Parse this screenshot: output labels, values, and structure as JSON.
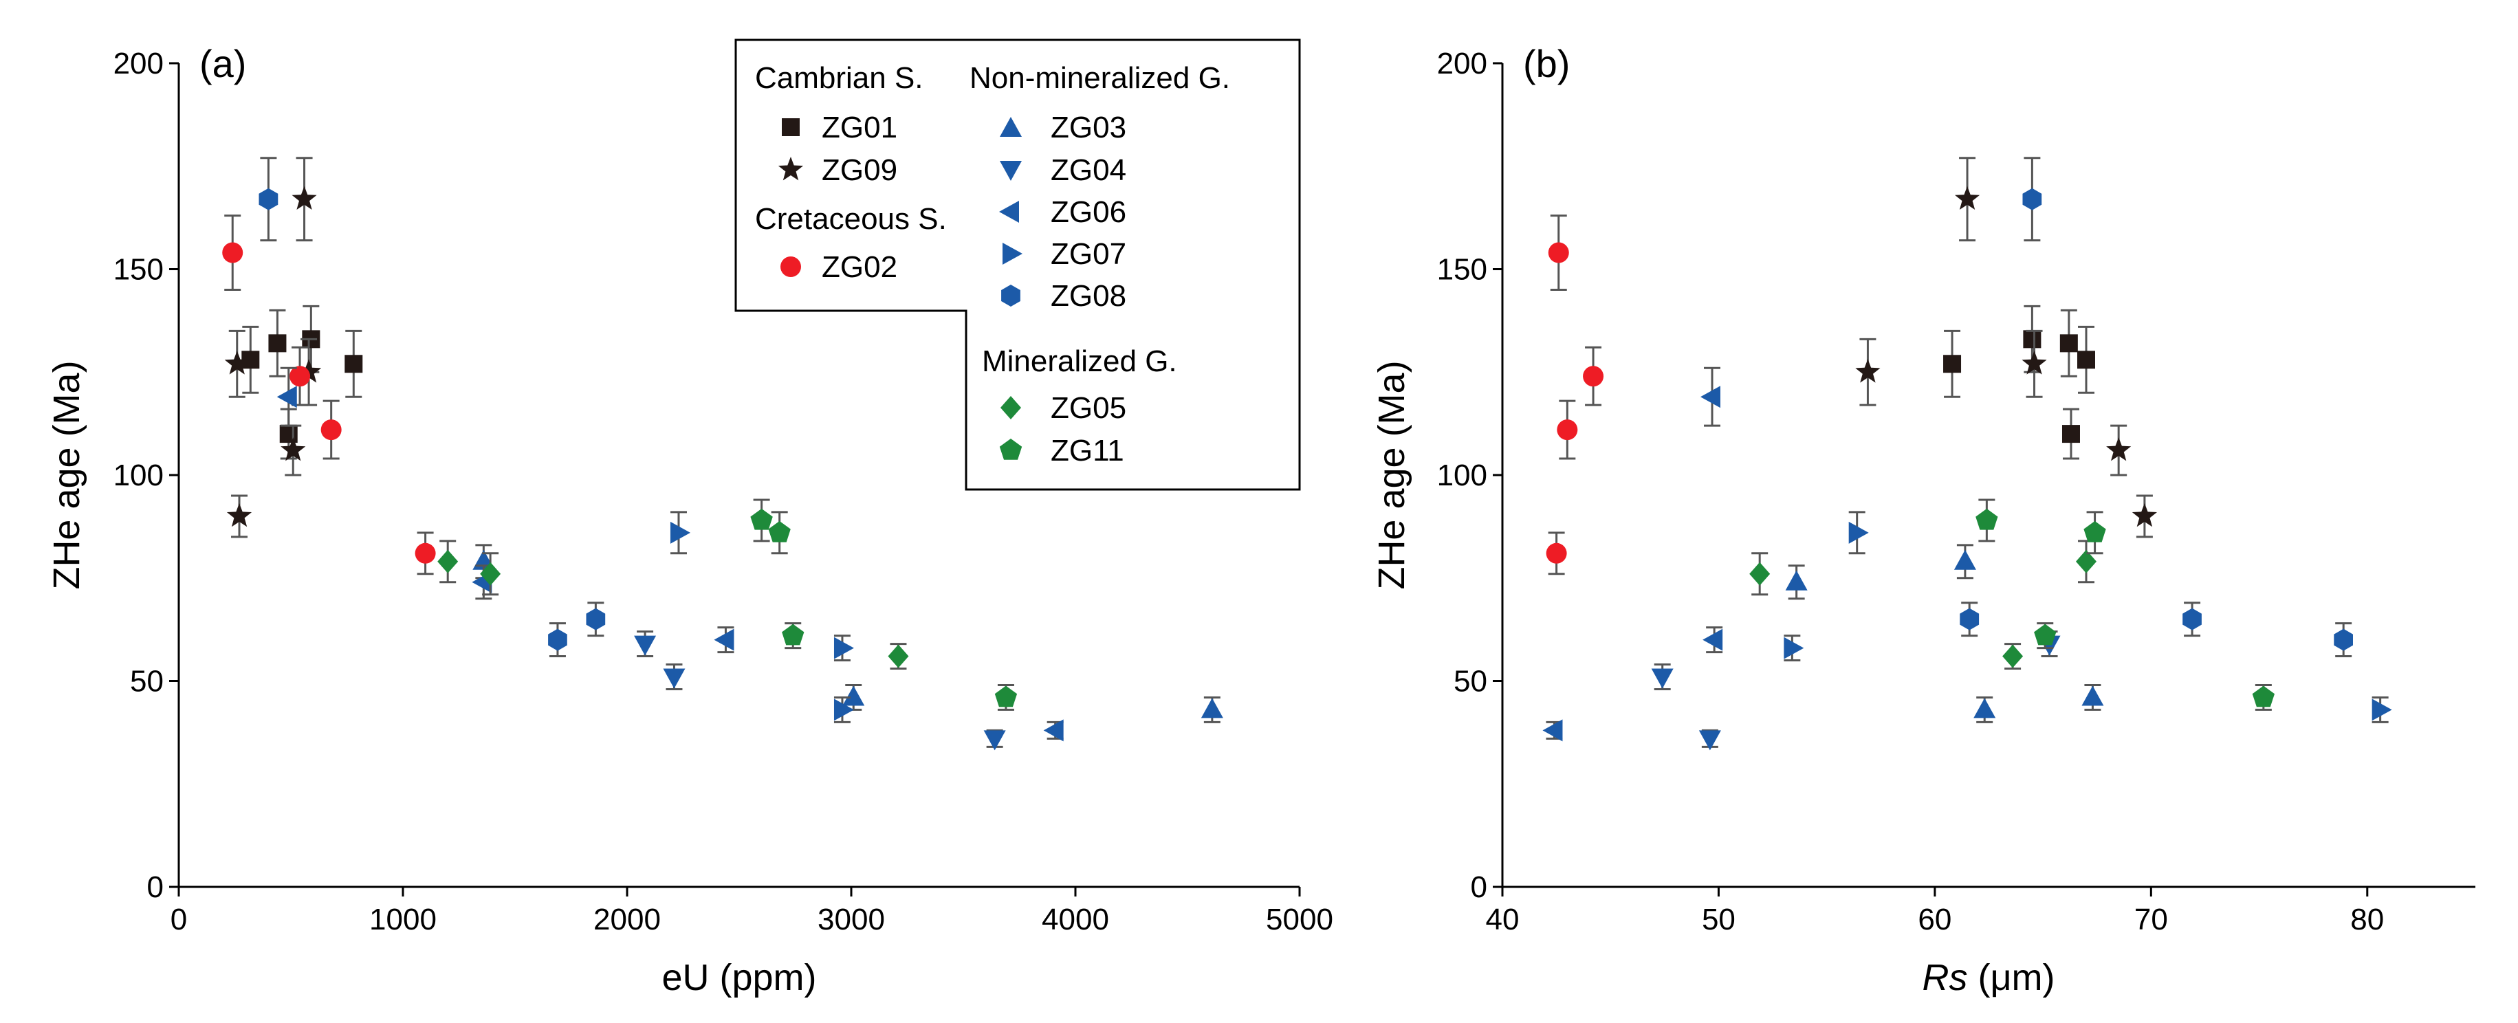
{
  "colors": {
    "black": "#231815",
    "red": "#ee1c25",
    "blue": "#1c5aa8",
    "green": "#1e8a3a",
    "err": "#555555"
  },
  "legend": {
    "groups": [
      {
        "title": "Cambrian S.",
        "items": [
          {
            "sample": "ZG01",
            "label": "ZG01"
          },
          {
            "sample": "ZG09",
            "label": "ZG09"
          }
        ]
      },
      {
        "title": "Cretaceous S.",
        "items": [
          {
            "sample": "ZG02",
            "label": "ZG02"
          }
        ]
      },
      {
        "title": "Non-mineralized G.",
        "items": [
          {
            "sample": "ZG03",
            "label": "ZG03"
          },
          {
            "sample": "ZG04",
            "label": "ZG04"
          },
          {
            "sample": "ZG06",
            "label": "ZG06"
          },
          {
            "sample": "ZG07",
            "label": "ZG07"
          },
          {
            "sample": "ZG08",
            "label": "ZG08"
          }
        ]
      },
      {
        "title": "Mineralized G.",
        "items": [
          {
            "sample": "ZG05",
            "label": "ZG05"
          },
          {
            "sample": "ZG11",
            "label": "ZG11"
          }
        ]
      }
    ]
  },
  "chart_data": [
    {
      "type": "scatter",
      "panel": "(a)",
      "xlabel": "eU (ppm)",
      "ylabel": "ZHe age (Ma)",
      "xlim": [
        0,
        5000
      ],
      "ylim": [
        0,
        200
      ],
      "xticks": [
        "0",
        "1000",
        "2000",
        "3000",
        "4000",
        "5000"
      ],
      "yticks": [
        "0",
        "50",
        "100",
        "150",
        "200"
      ],
      "legend_position": "top-center",
      "series": [
        {
          "name": "ZG01",
          "marker": "square",
          "color": "black",
          "points": [
            {
              "x": 320,
              "y": 128,
              "err": 8
            },
            {
              "x": 440,
              "y": 132,
              "err": 8
            },
            {
              "x": 590,
              "y": 133,
              "err": 8
            },
            {
              "x": 780,
              "y": 127,
              "err": 8
            },
            {
              "x": 490,
              "y": 110,
              "err": 6
            }
          ]
        },
        {
          "name": "ZG09",
          "marker": "star",
          "color": "black",
          "points": [
            {
              "x": 260,
              "y": 127,
              "err": 8
            },
            {
              "x": 270,
              "y": 90,
              "err": 5
            },
            {
              "x": 510,
              "y": 106,
              "err": 6
            },
            {
              "x": 560,
              "y": 167,
              "err": 10
            },
            {
              "x": 580,
              "y": 125,
              "err": 8
            }
          ]
        },
        {
          "name": "ZG02",
          "marker": "circle",
          "color": "red",
          "points": [
            {
              "x": 240,
              "y": 154,
              "err": 9
            },
            {
              "x": 540,
              "y": 124,
              "err": 7
            },
            {
              "x": 680,
              "y": 111,
              "err": 7
            },
            {
              "x": 1100,
              "y": 81,
              "err": 5
            }
          ]
        },
        {
          "name": "ZG03",
          "marker": "triangle-up",
          "color": "blue",
          "points": [
            {
              "x": 1360,
              "y": 79,
              "err": 4
            },
            {
              "x": 3010,
              "y": 46,
              "err": 3
            },
            {
              "x": 4610,
              "y": 43,
              "err": 3
            }
          ]
        },
        {
          "name": "ZG04",
          "marker": "triangle-down",
          "color": "blue",
          "points": [
            {
              "x": 2080,
              "y": 59,
              "err": 3
            },
            {
              "x": 2210,
              "y": 51,
              "err": 3
            },
            {
              "x": 3640,
              "y": 36,
              "err": 2
            }
          ]
        },
        {
          "name": "ZG06",
          "marker": "triangle-left",
          "color": "blue",
          "points": [
            {
              "x": 490,
              "y": 119,
              "err": 7
            },
            {
              "x": 1360,
              "y": 74,
              "err": 4
            },
            {
              "x": 2440,
              "y": 60,
              "err": 3
            },
            {
              "x": 3910,
              "y": 38,
              "err": 2
            }
          ]
        },
        {
          "name": "ZG07",
          "marker": "triangle-right",
          "color": "blue",
          "points": [
            {
              "x": 2230,
              "y": 86,
              "err": 5
            },
            {
              "x": 2960,
              "y": 58,
              "err": 3
            },
            {
              "x": 2960,
              "y": 43,
              "err": 3
            }
          ]
        },
        {
          "name": "ZG08",
          "marker": "hexagon",
          "color": "blue",
          "points": [
            {
              "x": 400,
              "y": 167,
              "err": 10
            },
            {
              "x": 1690,
              "y": 60,
              "err": 4
            },
            {
              "x": 1860,
              "y": 65,
              "err": 4
            }
          ]
        },
        {
          "name": "ZG05",
          "marker": "diamond",
          "color": "green",
          "points": [
            {
              "x": 1200,
              "y": 79,
              "err": 5
            },
            {
              "x": 1390,
              "y": 76,
              "err": 5
            },
            {
              "x": 3210,
              "y": 56,
              "err": 3
            }
          ]
        },
        {
          "name": "ZG11",
          "marker": "pentagon",
          "color": "green",
          "points": [
            {
              "x": 2600,
              "y": 89,
              "err": 5
            },
            {
              "x": 2680,
              "y": 86,
              "err": 5
            },
            {
              "x": 2740,
              "y": 61,
              "err": 3
            },
            {
              "x": 3690,
              "y": 46,
              "err": 3
            }
          ]
        }
      ]
    },
    {
      "type": "scatter",
      "panel": "(b)",
      "xlabel_italic": "Rs",
      "xlabel_unit": " (μm)",
      "ylabel": "ZHe age (Ma)",
      "xlim": [
        40,
        85
      ],
      "ylim": [
        0,
        200
      ],
      "xticks": [
        "40",
        "50",
        "60",
        "70",
        "80"
      ],
      "yticks": [
        "0",
        "50",
        "100",
        "150",
        "200"
      ],
      "series": [
        {
          "name": "ZG01",
          "marker": "square",
          "color": "black",
          "points": [
            {
              "x": 60.8,
              "y": 127,
              "err": 8
            },
            {
              "x": 64.5,
              "y": 133,
              "err": 8
            },
            {
              "x": 66.2,
              "y": 132,
              "err": 8
            },
            {
              "x": 66.3,
              "y": 110,
              "err": 6
            },
            {
              "x": 67.0,
              "y": 128,
              "err": 8
            }
          ]
        },
        {
          "name": "ZG09",
          "marker": "star",
          "color": "black",
          "points": [
            {
              "x": 56.9,
              "y": 125,
              "err": 8
            },
            {
              "x": 61.5,
              "y": 167,
              "err": 10
            },
            {
              "x": 64.6,
              "y": 127,
              "err": 8
            },
            {
              "x": 68.5,
              "y": 106,
              "err": 6
            },
            {
              "x": 69.7,
              "y": 90,
              "err": 5
            }
          ]
        },
        {
          "name": "ZG02",
          "marker": "circle",
          "color": "red",
          "points": [
            {
              "x": 42.6,
              "y": 154,
              "err": 9
            },
            {
              "x": 43.0,
              "y": 111,
              "err": 7
            },
            {
              "x": 44.2,
              "y": 124,
              "err": 7
            },
            {
              "x": 42.5,
              "y": 81,
              "err": 5
            }
          ]
        },
        {
          "name": "ZG03",
          "marker": "triangle-up",
          "color": "blue",
          "points": [
            {
              "x": 53.6,
              "y": 74,
              "err": 4
            },
            {
              "x": 61.4,
              "y": 79,
              "err": 4
            },
            {
              "x": 62.3,
              "y": 43,
              "err": 3
            },
            {
              "x": 67.3,
              "y": 46,
              "err": 3
            }
          ]
        },
        {
          "name": "ZG04",
          "marker": "triangle-down",
          "color": "blue",
          "points": [
            {
              "x": 47.4,
              "y": 51,
              "err": 3
            },
            {
              "x": 49.6,
              "y": 36,
              "err": 2
            },
            {
              "x": 65.3,
              "y": 59,
              "err": 3
            }
          ]
        },
        {
          "name": "ZG06",
          "marker": "triangle-left",
          "color": "blue",
          "points": [
            {
              "x": 42.4,
              "y": 38,
              "err": 2
            },
            {
              "x": 49.7,
              "y": 119,
              "err": 7
            },
            {
              "x": 49.8,
              "y": 60,
              "err": 3
            }
          ]
        },
        {
          "name": "ZG07",
          "marker": "triangle-right",
          "color": "blue",
          "points": [
            {
              "x": 53.4,
              "y": 58,
              "err": 3
            },
            {
              "x": 56.4,
              "y": 86,
              "err": 5
            },
            {
              "x": 80.6,
              "y": 43,
              "err": 3
            }
          ]
        },
        {
          "name": "ZG08",
          "marker": "hexagon",
          "color": "blue",
          "points": [
            {
              "x": 61.6,
              "y": 65,
              "err": 4
            },
            {
              "x": 64.5,
              "y": 167,
              "err": 10
            },
            {
              "x": 71.9,
              "y": 65,
              "err": 4
            },
            {
              "x": 78.9,
              "y": 60,
              "err": 4
            }
          ]
        },
        {
          "name": "ZG05",
          "marker": "diamond",
          "color": "green",
          "points": [
            {
              "x": 51.9,
              "y": 76,
              "err": 5
            },
            {
              "x": 63.6,
              "y": 56,
              "err": 3
            },
            {
              "x": 67.0,
              "y": 79,
              "err": 5
            }
          ]
        },
        {
          "name": "ZG11",
          "marker": "pentagon",
          "color": "green",
          "points": [
            {
              "x": 62.4,
              "y": 89,
              "err": 5
            },
            {
              "x": 65.1,
              "y": 61,
              "err": 3
            },
            {
              "x": 67.4,
              "y": 86,
              "err": 5
            },
            {
              "x": 75.2,
              "y": 46,
              "err": 3
            }
          ]
        }
      ]
    }
  ]
}
